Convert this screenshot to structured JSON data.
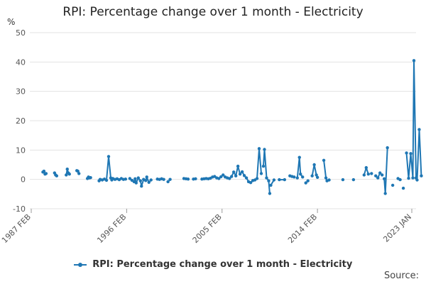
{
  "chart_data": {
    "type": "line",
    "title": "RPI: Percentage change over 1 month - Electricity",
    "unit_label": "%",
    "xlabel": "",
    "ylabel": "%",
    "ylim": [
      -10,
      50
    ],
    "yticks": [
      50,
      40,
      30,
      20,
      10,
      0,
      -10
    ],
    "xlim": [
      1987.1,
      2023.0
    ],
    "xticks": [
      {
        "label": "1987 FEB",
        "value": 1987.1
      },
      {
        "label": "1996 FEB",
        "value": 1996.1
      },
      {
        "label": "2005 FEB",
        "value": 2005.1
      },
      {
        "label": "2014 FEB",
        "value": 2014.1
      },
      {
        "label": "2023 JAN",
        "value": 2023.0
      }
    ],
    "grid": true,
    "legend_position": "bottom",
    "series": [
      {
        "name": "RPI: Percentage change over 1 month - Electricity",
        "color": "#1f77b4",
        "segments": [
          {
            "x": [
              1988.2,
              1988.3,
              1988.4,
              1988.5
            ],
            "y": [
              2.5,
              2.8,
              1.8,
              2.0
            ]
          },
          {
            "x": [
              1989.3,
              1989.4,
              1989.5
            ],
            "y": [
              2.2,
              1.5,
              1.2
            ]
          },
          {
            "x": [
              1990.4,
              1990.5,
              1990.6,
              1990.7
            ],
            "y": [
              1.5,
              3.5,
              2.2,
              1.8
            ]
          },
          {
            "x": [
              1991.4,
              1991.5,
              1991.6
            ],
            "y": [
              3.0,
              2.8,
              2.0
            ]
          },
          {
            "x": [
              1992.4,
              1992.5,
              1992.6,
              1992.7
            ],
            "y": [
              0.3,
              0.8,
              0.5,
              0.6
            ]
          },
          {
            "x": [
              1993.5,
              1993.6,
              1993.8,
              1994.0,
              1994.2,
              1994.4,
              1994.6,
              1994.7,
              1994.8,
              1995.0,
              1995.2,
              1995.4,
              1995.6,
              1995.8,
              1996.0
            ],
            "y": [
              -0.5,
              0.0,
              -0.2,
              0.1,
              -0.3,
              7.8,
              0.5,
              -0.2,
              0.3,
              0.0,
              0.2,
              -0.1,
              0.3,
              0.0,
              0.1
            ]
          },
          {
            "x": [
              1996.4,
              1996.6,
              1996.8,
              1996.9,
              1997.0,
              1997.2,
              1997.4,
              1997.5,
              1997.7,
              1997.9,
              1998.0,
              1998.2,
              1998.4
            ],
            "y": [
              0.3,
              -0.3,
              -0.8,
              0.2,
              -1.2,
              0.5,
              -0.5,
              -2.3,
              0.0,
              -0.4,
              0.8,
              -1.0,
              -0.2
            ]
          },
          {
            "x": [
              1999.0,
              1999.2,
              1999.4,
              1999.6
            ],
            "y": [
              0.1,
              0.0,
              0.2,
              0.0
            ]
          },
          {
            "x": [
              2000.0,
              2000.2
            ],
            "y": [
              -0.8,
              0.0
            ]
          },
          {
            "x": [
              2001.5,
              2001.7,
              2001.9
            ],
            "y": [
              0.3,
              0.2,
              0.1
            ]
          },
          {
            "x": [
              2002.4,
              2002.6
            ],
            "y": [
              0.1,
              0.2
            ]
          },
          {
            "x": [
              2003.2,
              2003.4,
              2003.6,
              2003.8,
              2004.0,
              2004.2,
              2004.4,
              2004.6,
              2004.8,
              2005.0,
              2005.2,
              2005.4,
              2005.6,
              2005.8,
              2006.0,
              2006.2,
              2006.4,
              2006.6,
              2006.8,
              2007.0,
              2007.2,
              2007.4,
              2007.6,
              2007.8,
              2008.0
            ],
            "y": [
              0.1,
              0.2,
              0.3,
              0.2,
              0.4,
              0.8,
              1.0,
              0.5,
              0.3,
              0.9,
              1.5,
              0.8,
              0.5,
              0.3,
              1.0,
              2.5,
              1.2,
              4.5,
              1.8,
              2.6,
              1.3,
              0.5,
              -0.8,
              -1.1,
              -0.4
            ]
          },
          {
            "x": [
              2008.2,
              2008.4,
              2008.6,
              2008.8
            ],
            "y": [
              -0.2,
              0.3,
              10.5,
              2.0
            ]
          },
          {
            "x": [
              2009.0,
              2009.1,
              2009.3,
              2009.5,
              2009.6
            ],
            "y": [
              4.5,
              10.2,
              0.5,
              -0.5,
              -4.8
            ]
          },
          {
            "x": [
              2009.7,
              2010.0
            ],
            "y": [
              -2.0,
              -0.2
            ]
          },
          {
            "x": [
              2010.5,
              2011.0
            ],
            "y": [
              -0.1,
              -0.1
            ]
          },
          {
            "x": [
              2011.5,
              2011.7,
              2011.9
            ],
            "y": [
              1.2,
              1.0,
              0.8
            ]
          },
          {
            "x": [
              2012.2,
              2012.4,
              2012.5,
              2012.7
            ],
            "y": [
              0.5,
              7.5,
              1.8,
              0.8
            ]
          },
          {
            "x": [
              2013.0,
              2013.2
            ],
            "y": [
              -1.2,
              -0.5
            ]
          },
          {
            "x": [
              2013.6,
              2013.8,
              2014.0,
              2014.1
            ],
            "y": [
              1.2,
              5.0,
              1.5,
              0.7
            ]
          },
          {
            "x": [
              2014.7,
              2014.9,
              2015.0,
              2015.2
            ],
            "y": [
              6.5,
              0.5,
              -0.5,
              -0.2
            ]
          },
          {
            "x": [
              2016.5
            ],
            "y": [
              -0.1
            ]
          },
          {
            "x": [
              2017.5
            ],
            "y": [
              -0.1
            ]
          },
          {
            "x": [
              2018.5,
              2018.7,
              2018.9
            ],
            "y": [
              1.5,
              4.0,
              1.8
            ]
          },
          {
            "x": [
              2019.2
            ],
            "y": [
              2.0
            ]
          },
          {
            "x": [
              2019.6,
              2019.8,
              2020.0,
              2020.2
            ],
            "y": [
              1.2,
              0.5,
              2.2,
              1.5
            ]
          },
          {
            "x": [
              2020.4,
              2020.5,
              2020.7
            ],
            "y": [
              0.2,
              -4.8,
              10.8
            ]
          },
          {
            "x": [
              2021.2
            ],
            "y": [
              -2.0
            ]
          },
          {
            "x": [
              2021.7,
              2021.9
            ],
            "y": [
              0.3,
              -0.1
            ]
          },
          {
            "x": [
              2022.2
            ],
            "y": [
              -3.0
            ]
          },
          {
            "x": [
              2022.5,
              2022.7,
              2022.9,
              2023.1,
              2023.2,
              2023.4,
              2023.5,
              2023.7,
              2023.9
            ],
            "y": [
              9.0,
              0.4,
              8.8,
              0.5,
              40.5,
              0.5,
              -0.2,
              17.0,
              1.2
            ]
          }
        ]
      }
    ]
  },
  "legend": {
    "label": "RPI: Percentage change over 1 month - Electricity"
  },
  "source_label": "Source:"
}
